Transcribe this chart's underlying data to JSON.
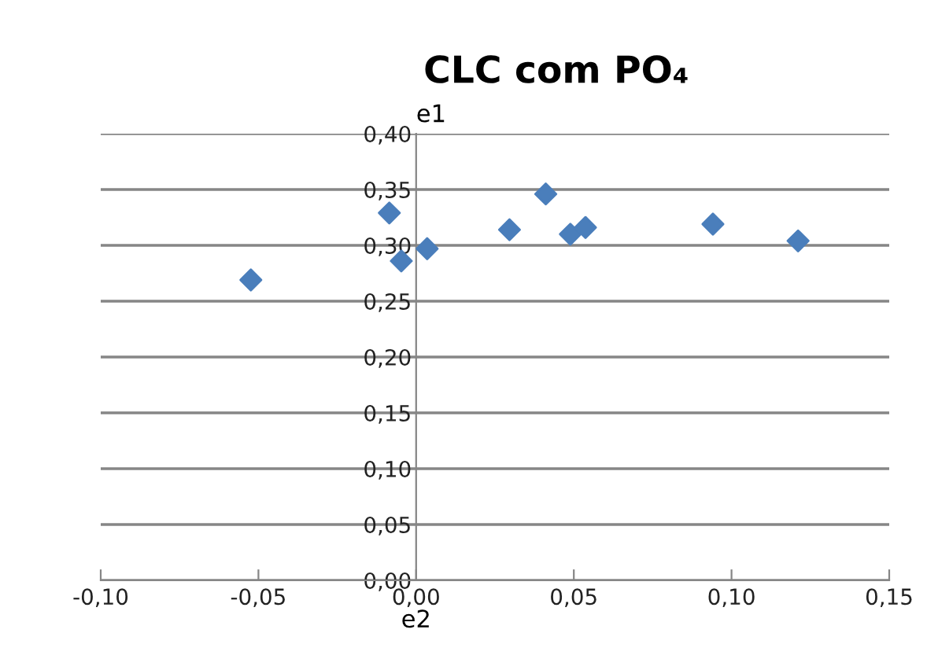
{
  "chart_data": {
    "type": "scatter",
    "title": "CLC com PO₄",
    "xlabel": "e2",
    "ylabel": "e1",
    "x": [
      -0.0524,
      -0.0085,
      -0.0047,
      0.0035,
      0.0296,
      0.0411,
      0.0489,
      0.0537,
      0.0941,
      0.1211
    ],
    "series": [
      {
        "color": "#4a7ebb",
        "values": [
          0.269,
          0.329,
          0.286,
          0.297,
          0.314,
          0.346,
          0.31,
          0.316,
          0.319,
          0.304
        ]
      }
    ],
    "marker": "diamond",
    "grid": "y",
    "legend": false,
    "xlim": [
      -0.1,
      0.15
    ],
    "ylim": [
      0.0,
      0.4
    ],
    "xticks": [
      {
        "value": -0.1,
        "label": "-0,10"
      },
      {
        "value": -0.05,
        "label": "-0,05"
      },
      {
        "value": 0.0,
        "label": "0,00"
      },
      {
        "value": 0.05,
        "label": "0,05"
      },
      {
        "value": 0.1,
        "label": "0,10"
      },
      {
        "value": 0.15,
        "label": "0,15"
      }
    ],
    "yticks": [
      {
        "value": 0.0,
        "label": "0,00"
      },
      {
        "value": 0.05,
        "label": "0,05"
      },
      {
        "value": 0.1,
        "label": "0,10"
      },
      {
        "value": 0.15,
        "label": "0,15"
      },
      {
        "value": 0.2,
        "label": "0,20"
      },
      {
        "value": 0.25,
        "label": "0,25"
      },
      {
        "value": 0.3,
        "label": "0,30"
      },
      {
        "value": 0.35,
        "label": "0,35"
      },
      {
        "value": 0.4,
        "label": "0,40"
      }
    ]
  }
}
